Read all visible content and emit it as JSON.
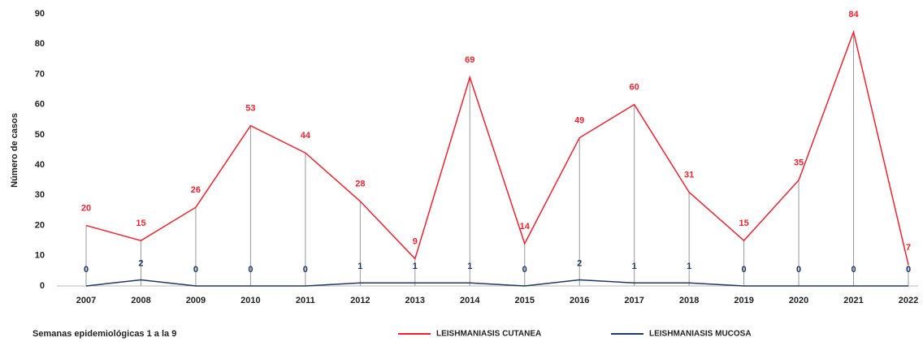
{
  "chart_data": {
    "type": "line",
    "y_label": "Número de casos",
    "x_label": "Semanas epidemiológicas 1 a la 9",
    "categories": [
      "2007",
      "2008",
      "2009",
      "2010",
      "2011",
      "2012",
      "2013",
      "2014",
      "2015",
      "2016",
      "2017",
      "2018",
      "2019",
      "2020",
      "2021",
      "2022"
    ],
    "series": [
      {
        "name": "LEISHMANIASIS CUTANEA",
        "color": "#f5222d",
        "values": [
          20,
          15,
          26,
          53,
          44,
          28,
          9,
          69,
          14,
          49,
          60,
          31,
          15,
          35,
          84,
          7
        ]
      },
      {
        "name": "LEISHMANIASIS MUCOSA",
        "color": "#203864",
        "values": [
          0,
          2,
          0,
          0,
          0,
          1,
          1,
          1,
          0,
          2,
          1,
          1,
          0,
          0,
          0,
          0
        ]
      }
    ],
    "ylim": [
      0,
      90
    ],
    "yticks": [
      0,
      10,
      20,
      30,
      40,
      50,
      60,
      70,
      80,
      90
    ],
    "grid": false,
    "drop_lines": true,
    "legend": "bottom"
  }
}
